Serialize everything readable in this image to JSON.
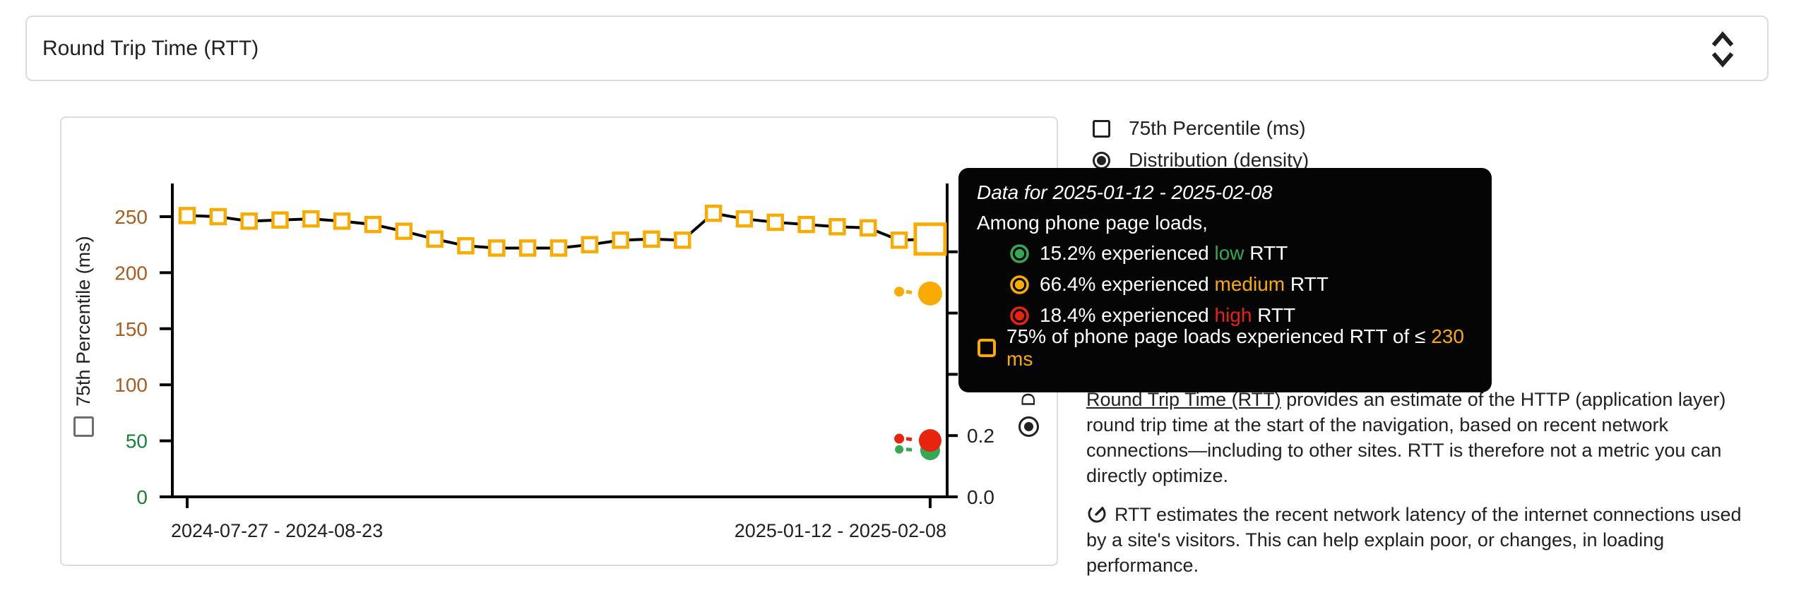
{
  "selector": {
    "label": "Round Trip Time (RTT)"
  },
  "legend": {
    "items": [
      {
        "control": "checkbox",
        "checked": false,
        "label": "75th Percentile (ms)"
      },
      {
        "control": "radio",
        "checked": true,
        "label": "Distribution (density)"
      }
    ]
  },
  "tooltip": {
    "title": "Data for 2025-01-12 - 2025-02-08",
    "subtitle": "Among phone page loads,",
    "rows": [
      {
        "percent": "15.2%",
        "middle": " experienced ",
        "level": "low",
        "suffix": " RTT",
        "color": "#34a853"
      },
      {
        "percent": "66.4%",
        "middle": " experienced ",
        "level": "medium",
        "suffix": " RTT",
        "color": "#f9ab00"
      },
      {
        "percent": "18.4%",
        "middle": " experienced ",
        "level": "high",
        "suffix": " RTT",
        "color": "#e8230e"
      }
    ],
    "footer": {
      "prefix": "75% of phone page loads experienced RTT of ≤ ",
      "value": "230 ms"
    }
  },
  "chart_data": {
    "type": "line",
    "title": "Round Trip Time (RTT)",
    "ylabel_left": "75th Percentile (ms)",
    "ylabel_right": "Distribution (density)",
    "x_tick_labels": [
      "2024-07-27 - 2024-08-23",
      "2025-01-12 - 2025-02-08"
    ],
    "x_tick_indices": [
      0,
      24
    ],
    "ylim_left": [
      0,
      280
    ],
    "yticks_left": [
      0,
      50,
      100,
      150,
      200,
      250
    ],
    "ytick_colors_left": [
      "#188038",
      "#188038",
      "#a85c1e",
      "#a85c1e",
      "#a85c1e",
      "#a85c1e"
    ],
    "ylim_right": [
      0,
      1.02
    ],
    "yticks_right": [
      0.0,
      0.2,
      0.4,
      0.6,
      0.8
    ],
    "grid": false,
    "series": [
      {
        "name": "75th Percentile (ms)",
        "marker": "open-square",
        "marker_color": "#f9ab00",
        "line_color": "#000000",
        "values": [
          251,
          250,
          246,
          247,
          248,
          246,
          243,
          237,
          230,
          224,
          222,
          222,
          222,
          225,
          229,
          230,
          229,
          253,
          248,
          245,
          243,
          241,
          240,
          229,
          230
        ],
        "highlight_index": 24
      }
    ],
    "density_points": [
      {
        "name": "low",
        "color": "#34a853",
        "previous": 0.155,
        "current": 0.152
      },
      {
        "name": "medium",
        "color": "#f9ab00",
        "previous": 0.67,
        "current": 0.664
      },
      {
        "name": "high",
        "color": "#e8230e",
        "previous": 0.19,
        "current": 0.184
      }
    ]
  },
  "description": {
    "p1_link": "Round Trip Time (RTT)",
    "p1_rest": " provides an estimate of the HTTP (application layer) round trip time at the start of the navigation, based on recent network connections—including to other sites. RTT is therefore not a metric you can directly optimize.",
    "p2": "RTT estimates the recent network latency of the internet connections used by a site's visitors. This can help explain poor, or changes, in loading performance."
  },
  "colors": {
    "accent_orange": "#f9ab00",
    "good_green": "#34a853",
    "poor_red": "#e8230e",
    "axis_green": "#188038",
    "axis_brown": "#a85c1e",
    "border_gray": "#dadce0"
  }
}
